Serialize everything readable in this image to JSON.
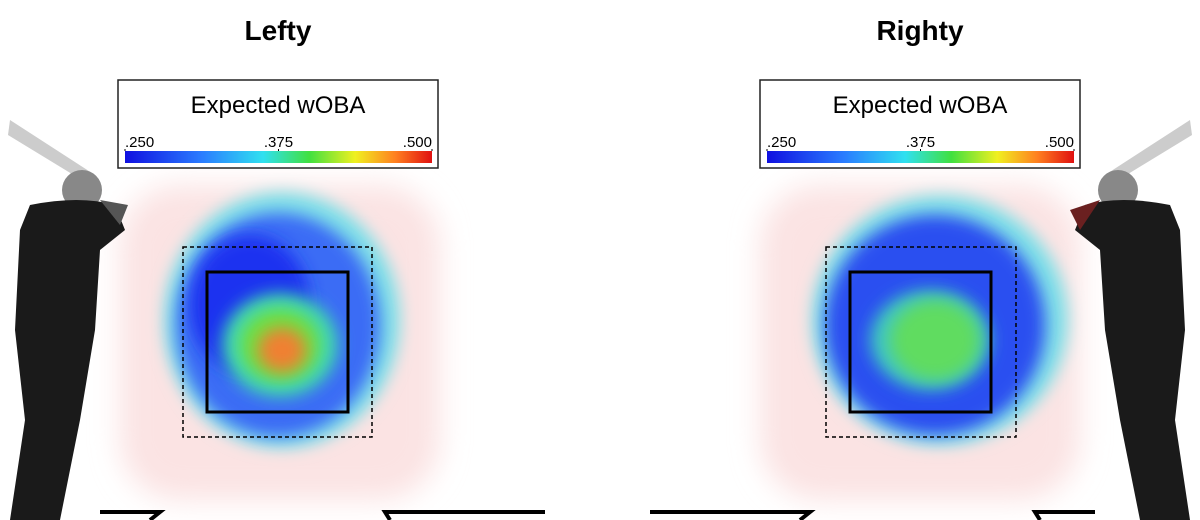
{
  "panels": [
    {
      "title": "Lefty",
      "legend": {
        "title": "Expected wOBA",
        "range": [
          0.25,
          0.5
        ],
        "ticks": [
          {
            "value": 0.25,
            "label": ".250"
          },
          {
            "value": 0.375,
            "label": ".375"
          },
          {
            "value": 0.5,
            "label": ".500"
          }
        ]
      }
    },
    {
      "title": "Righty",
      "legend": {
        "title": "Expected wOBA",
        "range": [
          0.25,
          0.5
        ],
        "ticks": [
          {
            "value": 0.25,
            "label": ".250"
          },
          {
            "value": 0.375,
            "label": ".375"
          },
          {
            "value": 0.5,
            "label": ".500"
          }
        ]
      }
    }
  ]
}
